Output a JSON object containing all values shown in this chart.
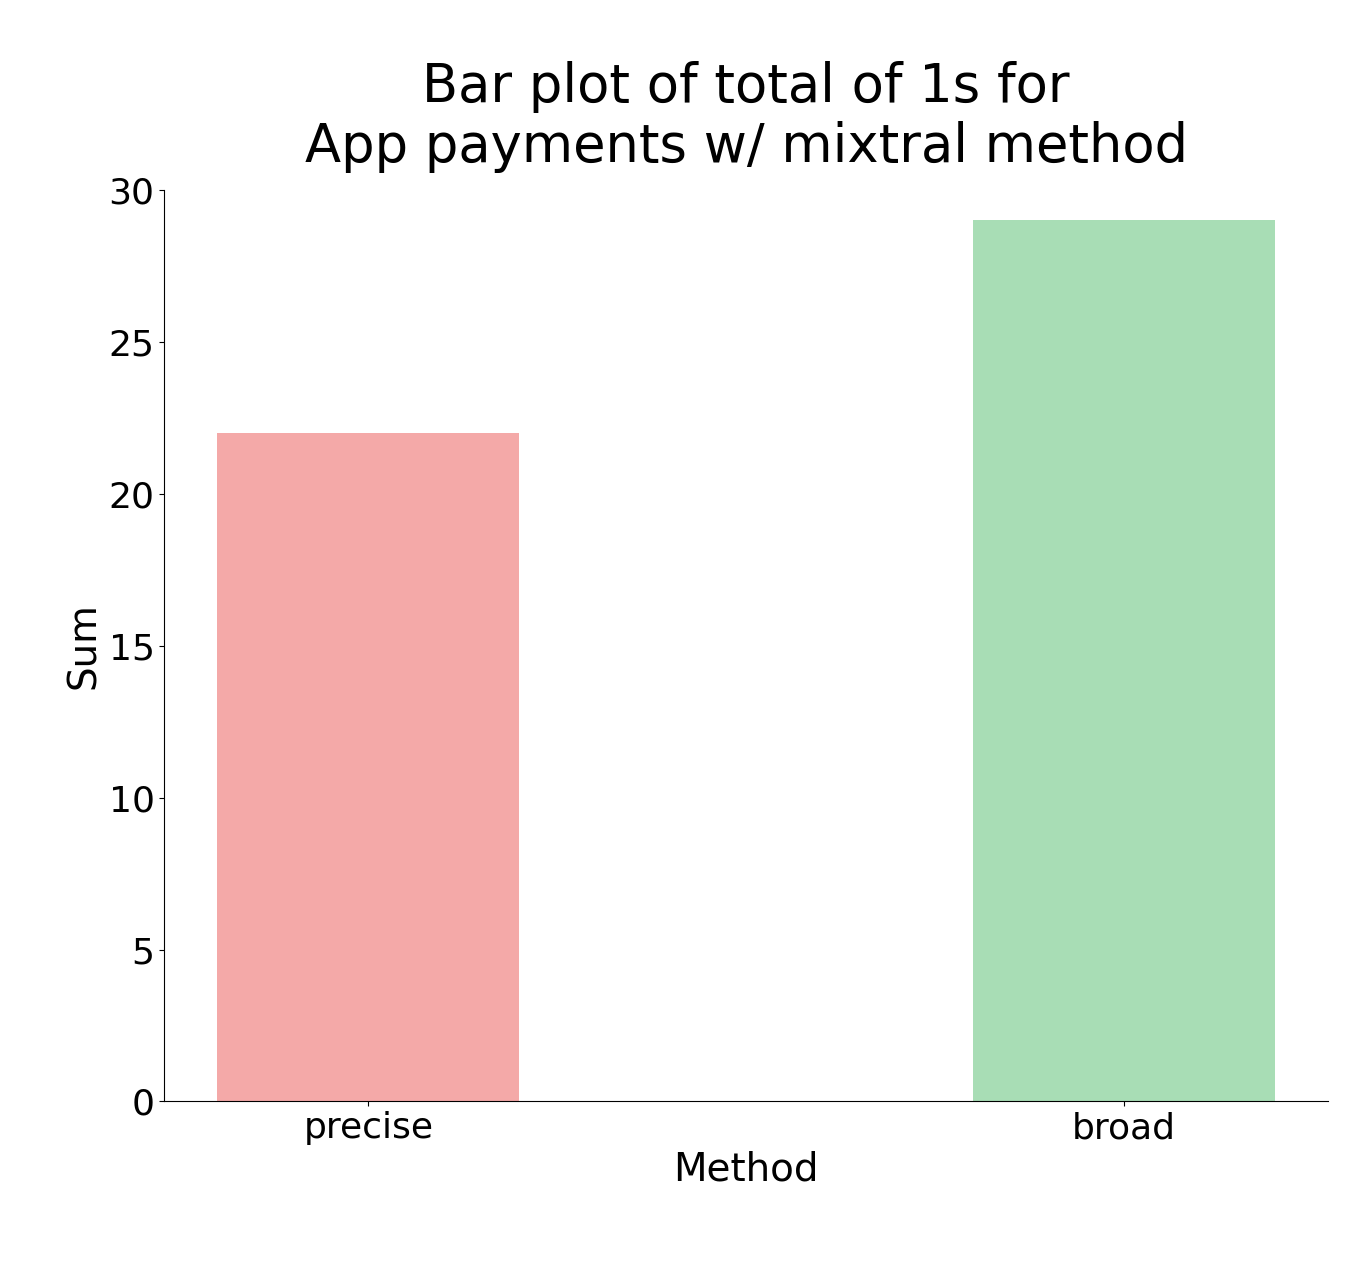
{
  "categories": [
    "precise",
    "broad"
  ],
  "values": [
    22,
    29
  ],
  "bar_colors": [
    "#f4a9a8",
    "#a8ddb5"
  ],
  "title": "Bar plot of total of 1s for\nApp payments w/ mixtral method",
  "xlabel": "Method",
  "ylabel": "Sum",
  "ylim": [
    0,
    30
  ],
  "yticks": [
    0,
    5,
    10,
    15,
    20,
    25,
    30
  ],
  "title_fontsize": 38,
  "label_fontsize": 28,
  "tick_fontsize": 26,
  "bar_width": 0.4,
  "background_color": "#ffffff"
}
